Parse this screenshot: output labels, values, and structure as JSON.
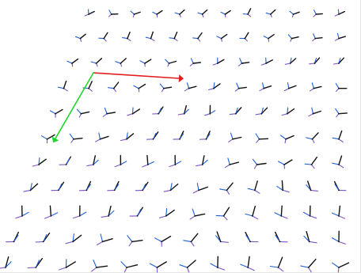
{
  "scene": {
    "background": "#ffffff",
    "colors": {
      "x_axis": "#e21b1b",
      "y_axis": "#22d62a",
      "frame_black": "#111111",
      "frame_blue": "#1f5fd6",
      "frame_purple": "#7b55c7",
      "frame_red": "#d34a4a"
    },
    "axes": [
      {
        "name": "x-axis",
        "color_key": "x_axis"
      },
      {
        "name": "y-axis",
        "color_key": "y_axis"
      }
    ],
    "frame_field": {
      "rows": 11,
      "cols": 12,
      "glyph": "local-coordinate-frame",
      "note_visible": false
    }
  }
}
